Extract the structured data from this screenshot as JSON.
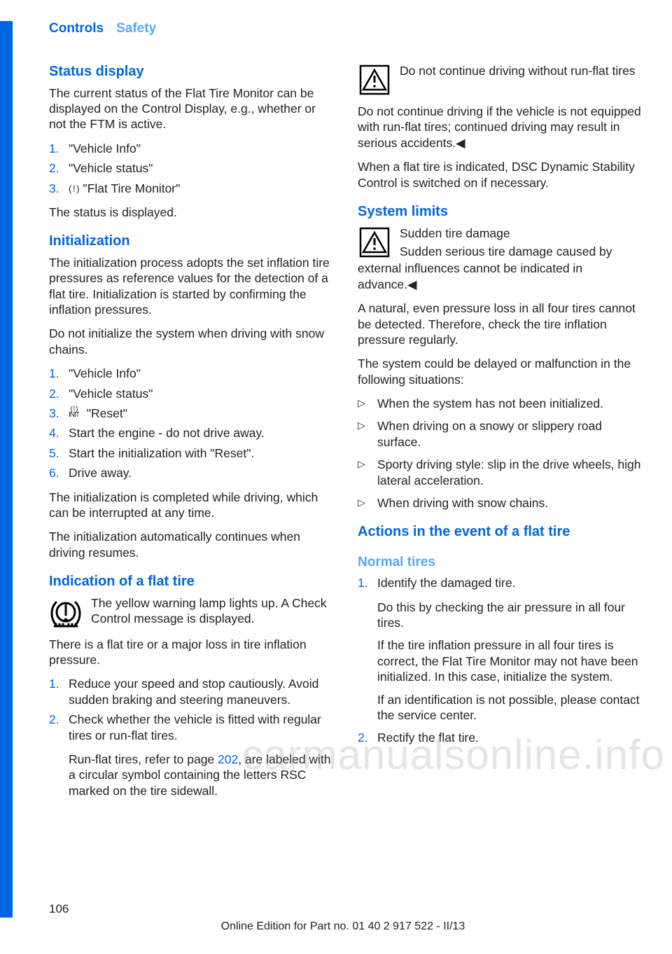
{
  "header": {
    "controls": "Controls",
    "safety": "Safety"
  },
  "left": {
    "status_display": {
      "title": "Status display",
      "intro": "The current status of the Flat Tire Monitor can be displayed on the Control Display, e.g., whether or not the FTM is active.",
      "steps": [
        "\"Vehicle Info\"",
        "\"Vehicle status\"",
        "\"Flat Tire Monitor\""
      ],
      "step3_glyph": "( ! )",
      "outro": "The status is displayed."
    },
    "initialization": {
      "title": "Initialization",
      "p1": "The initialization process adopts the set inflation tire pressures as reference values for the detection of a flat tire. Initialization is started by confirming the inflation pressures.",
      "p2": "Do not initialize the system when driving with snow chains.",
      "steps": [
        "\"Vehicle Info\"",
        "\"Vehicle status\"",
        "\"Reset\"",
        "Start the engine - do not drive away.",
        "Start the initialization with \"Reset\".",
        "Drive away."
      ],
      "step3_glyph": "( ! )\nINIT",
      "p3": "The initialization is completed while driving, which can be interrupted at any time.",
      "p4": "The initialization automatically continues when driving resumes."
    },
    "indication": {
      "title": "Indication of a flat tire",
      "icon_text1": "The yellow warning lamp lights up. A Check Control message is displayed.",
      "icon_text2": "There is a flat tire or a major loss in tire inflation pressure.",
      "steps": [
        "Reduce your speed and stop cautiously. Avoid sudden braking and steering maneuvers.",
        "Check whether the vehicle is fitted with regular tires or run-flat tires."
      ],
      "sub_a": "Run-flat tires, refer to page ",
      "sub_link": "202",
      "sub_b": ", are labeled with a circular symbol containing the letters RSC marked on the tire sidewall."
    }
  },
  "right": {
    "warn1": {
      "title": "Do not continue driving without run-flat tires",
      "body": "Do not continue driving if the vehicle is not equipped with run-flat tires; continued driving may result in serious accidents.◀"
    },
    "p_after_warn1": "When a flat tire is indicated, DSC Dynamic Stability Control is switched on if necessary.",
    "system_limits": {
      "title": "System limits",
      "warn_title": "Sudden tire damage",
      "warn_body": "Sudden serious tire damage caused by external influences cannot be indicated in advance.◀",
      "p1": "A natural, even pressure loss in all four tires cannot be detected. Therefore, check the tire inflation pressure regularly.",
      "p2": "The system could be delayed or malfunction in the following situations:",
      "bullets": [
        "When the system has not been initialized.",
        "When driving on a snowy or slippery road surface.",
        "Sporty driving style: slip in the drive wheels, high lateral acceleration.",
        "When driving with snow chains."
      ]
    },
    "actions": {
      "title": "Actions in the event of a flat tire",
      "normal_title": "Normal tires",
      "steps": [
        "Identify the damaged tire.",
        "Rectify the flat tire."
      ],
      "sub1": "Do this by checking the air pressure in all four tires.",
      "sub2": "If the tire inflation pressure in all four tires is correct, the Flat Tire Monitor may not have been initialized. In this case, initialize the system.",
      "sub3": "If an identification is not possible, please contact the service center."
    }
  },
  "watermark": "carmanualsonline.info",
  "page_number": "106",
  "footer": "Online Edition for Part no. 01 40 2 917 522 - II/13"
}
